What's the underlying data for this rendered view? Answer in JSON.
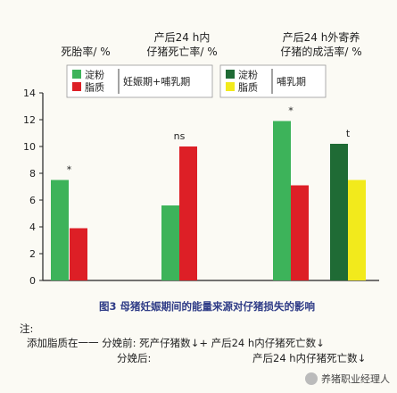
{
  "chart_data": {
    "type": "bar",
    "ylim": [
      0,
      14
    ],
    "yticks": [
      0,
      2,
      4,
      6,
      8,
      10,
      12,
      14
    ],
    "grid": false,
    "groups": [
      {
        "title_lines": [
          "死胎率/ %"
        ],
        "series_values": [
          {
            "name": "淀粉",
            "value": 7.5,
            "color": "#3db35a"
          },
          {
            "name": "脂质",
            "value": 3.9,
            "color": "#dd1f26"
          }
        ],
        "significance": "*"
      },
      {
        "title_lines": [
          "产后24 h内",
          "仔猪死亡率/ %"
        ],
        "series_values": [
          {
            "name": "淀粉",
            "value": 5.6,
            "color": "#3db35a"
          },
          {
            "name": "脂质",
            "value": 10.0,
            "color": "#dd1f26"
          }
        ],
        "significance": "ns"
      },
      {
        "title_lines": [
          "产后24 h外寄养",
          "仔猪的成活率/ %"
        ],
        "series_values": [
          {
            "name": "淀粉",
            "value": 11.9,
            "color": "#3db35a"
          },
          {
            "name": "脂质",
            "value": 7.1,
            "color": "#dd1f26"
          }
        ],
        "significance": "*"
      },
      {
        "title_lines": [],
        "series_values": [
          {
            "name": "淀粉",
            "value": 10.2,
            "color": "#1f6b35"
          },
          {
            "name": "脂质",
            "value": 7.5,
            "color": "#f2ea1c"
          }
        ],
        "significance": "t"
      }
    ],
    "legends": [
      {
        "items": [
          {
            "label": "淀粉",
            "color": "#3db35a"
          },
          {
            "label": "脂质",
            "color": "#dd1f26"
          }
        ],
        "period": "妊娠期+哺乳期"
      },
      {
        "items": [
          {
            "label": "淀粉",
            "color": "#1f6b35"
          },
          {
            "label": "脂质",
            "color": "#f2ea1c"
          }
        ],
        "period": "哺乳期"
      }
    ],
    "caption": "图3  母猪妊娠期间的能量来源对仔猪损失的影响"
  },
  "notes": {
    "label": "注:",
    "line1": "添加脂质在一一 分娩前: 死产仔猪数↓+ 产后24 h内仔猪死亡数↓",
    "line2_left": "分娩后:",
    "line2_right": "产后24 h内仔猪死亡数↓"
  },
  "watermark": "养猪职业经理人"
}
